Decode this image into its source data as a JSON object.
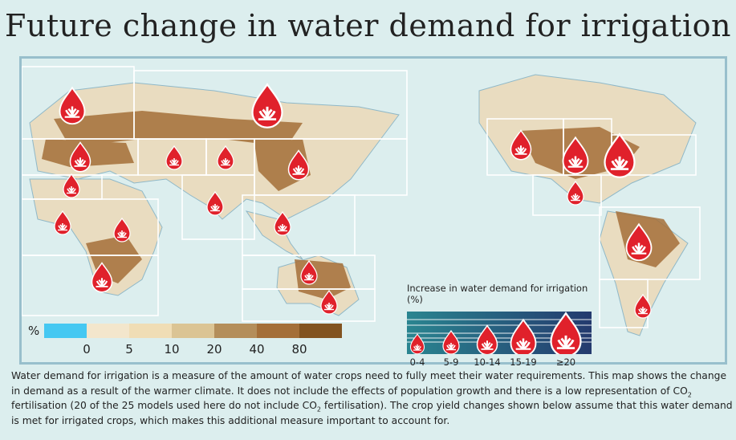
{
  "title": "Future change in water demand for irrigation",
  "scale": {
    "unit": "%",
    "colors": [
      "#45c8f2",
      "#f3e6cc",
      "#f0ddb5",
      "#dbc494",
      "#b48e5a",
      "#a46f38",
      "#82531f"
    ],
    "labels": [
      "0",
      "5",
      "10",
      "20",
      "40",
      "80"
    ]
  },
  "drop_legend": {
    "title": "Increase in water demand for irrigation (%)",
    "classes": [
      "0-4",
      "5-9",
      "10-14",
      "15-19",
      "≥20"
    ],
    "drop_color": "#e0212b"
  },
  "caption": {
    "part1": "Water demand for irrigation is a measure of the amount of water crops need to fully meet their water requirements. This map shows the change in demand as a result of the warmer climate. It does not include the effects of population growth and there is a low representation of CO",
    "sub1": "2",
    "part2": " fertilisation (20 of the 25 models used here do not include CO",
    "sub2": "2",
    "part3": " fertilisation). The crop yield changes shown below assume that this water demand is met for irrigated crops, which makes this additional measure important to account for."
  }
}
